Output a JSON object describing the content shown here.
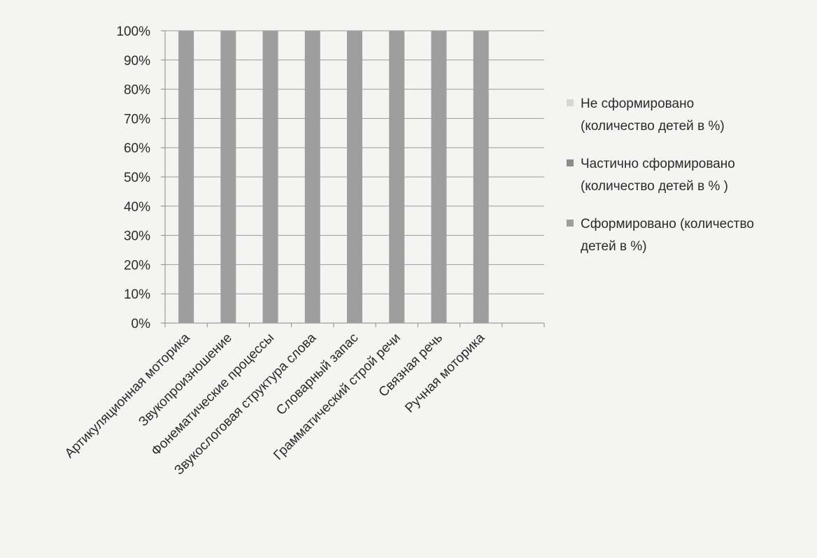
{
  "chart_data": {
    "type": "bar",
    "stacked": true,
    "percent_stacked": true,
    "categories": [
      "Артикуляционная моторика",
      "Звукопроизношение",
      "Фонематические процессы",
      "Звукослоговая структура слова",
      "Словарный запас",
      "Грамматический строй речи",
      "Связная речь",
      "Ручная моторика"
    ],
    "series": [
      {
        "name": "Сформировано (количество детей в %)",
        "color": "#9e9e9e",
        "values": [
          100,
          100,
          100,
          100,
          100,
          100,
          100,
          100
        ]
      },
      {
        "name": "Частично сформировано (количество детей в % )",
        "color": "#8c8c8c",
        "values": [
          0,
          0,
          0,
          0,
          0,
          0,
          0,
          0
        ]
      },
      {
        "name": "Не сформировано (количество детей в %)",
        "color": "#d6d6d6",
        "values": [
          0,
          0,
          0,
          0,
          0,
          0,
          0,
          0
        ]
      }
    ],
    "yticks": [
      "0%",
      "10%",
      "20%",
      "30%",
      "40%",
      "50%",
      "60%",
      "70%",
      "80%",
      "90%",
      "100%"
    ],
    "ylim": [
      0,
      100
    ],
    "grid": true,
    "legend": {
      "position": "right",
      "order": [
        2,
        1,
        0
      ],
      "lines": [
        [
          "Не сформировано",
          "(количество детей в %)"
        ],
        [
          "Частично сформировано",
          "(количество детей в % )"
        ],
        [
          "Сформировано (количество",
          "детей в %)"
        ]
      ]
    }
  }
}
